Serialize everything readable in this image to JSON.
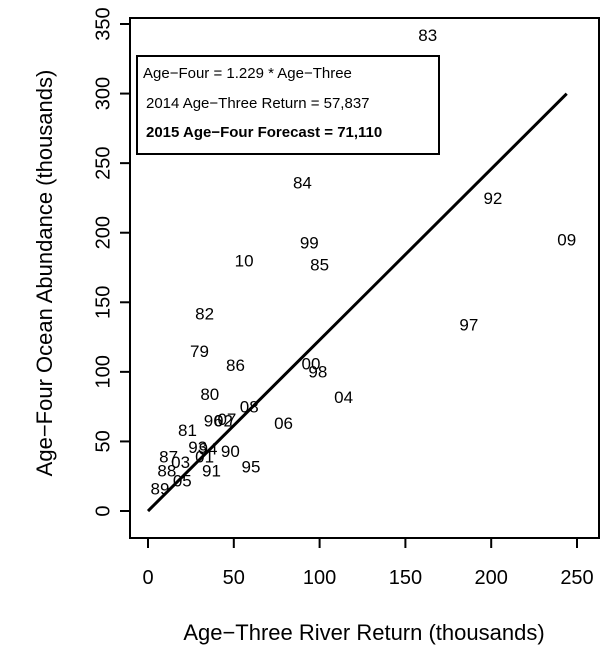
{
  "chart_data": {
    "type": "scatter",
    "title": "",
    "xlabel": "Age−Three River Return (thousands)",
    "ylabel": "Age−Four Ocean Abundance (thousands)",
    "xlim": [
      0,
      250
    ],
    "ylim": [
      0,
      350
    ],
    "xticks": [
      0,
      50,
      100,
      150,
      200,
      250
    ],
    "yticks": [
      0,
      50,
      100,
      150,
      200,
      250,
      300,
      350
    ],
    "grid": false,
    "points": [
      {
        "label": "83",
        "x": 163,
        "y": 341
      },
      {
        "label": "84",
        "x": 90,
        "y": 235
      },
      {
        "label": "92",
        "x": 201,
        "y": 224
      },
      {
        "label": "09",
        "x": 244,
        "y": 194
      },
      {
        "label": "99",
        "x": 94,
        "y": 192
      },
      {
        "label": "10",
        "x": 56,
        "y": 179
      },
      {
        "label": "85",
        "x": 100,
        "y": 176
      },
      {
        "label": "82",
        "x": 33,
        "y": 141
      },
      {
        "label": "97",
        "x": 187,
        "y": 133
      },
      {
        "label": "79",
        "x": 30,
        "y": 114
      },
      {
        "label": "86",
        "x": 51,
        "y": 104
      },
      {
        "label": "00",
        "x": 95,
        "y": 105
      },
      {
        "label": "98",
        "x": 99,
        "y": 99
      },
      {
        "label": "80",
        "x": 36,
        "y": 83
      },
      {
        "label": "04",
        "x": 114,
        "y": 81
      },
      {
        "label": "08",
        "x": 59,
        "y": 74
      },
      {
        "label": "96",
        "x": 38,
        "y": 64
      },
      {
        "label": "02",
        "x": 44,
        "y": 64
      },
      {
        "label": "07",
        "x": 46,
        "y": 65
      },
      {
        "label": "06",
        "x": 79,
        "y": 62
      },
      {
        "label": "81",
        "x": 23,
        "y": 57
      },
      {
        "label": "93",
        "x": 29,
        "y": 45
      },
      {
        "label": "94",
        "x": 35,
        "y": 44
      },
      {
        "label": "90",
        "x": 48,
        "y": 42
      },
      {
        "label": "87",
        "x": 12,
        "y": 38
      },
      {
        "label": "03",
        "x": 19,
        "y": 34
      },
      {
        "label": "01",
        "x": 33,
        "y": 38
      },
      {
        "label": "91",
        "x": 37,
        "y": 28
      },
      {
        "label": "95",
        "x": 60,
        "y": 31
      },
      {
        "label": "88",
        "x": 11,
        "y": 28
      },
      {
        "label": "05",
        "x": 20,
        "y": 21
      },
      {
        "label": "89",
        "x": 7,
        "y": 15
      }
    ],
    "fit_line": {
      "slope": 1.229,
      "x_range": [
        0,
        244
      ]
    },
    "legend": {
      "placement": "top-left",
      "line1": "Age−Four = 1.229 * Age−Three",
      "line2": "2014 Age−Three Return = 57,837",
      "line3": "2015 Age−Four Forecast = 71,110"
    }
  }
}
